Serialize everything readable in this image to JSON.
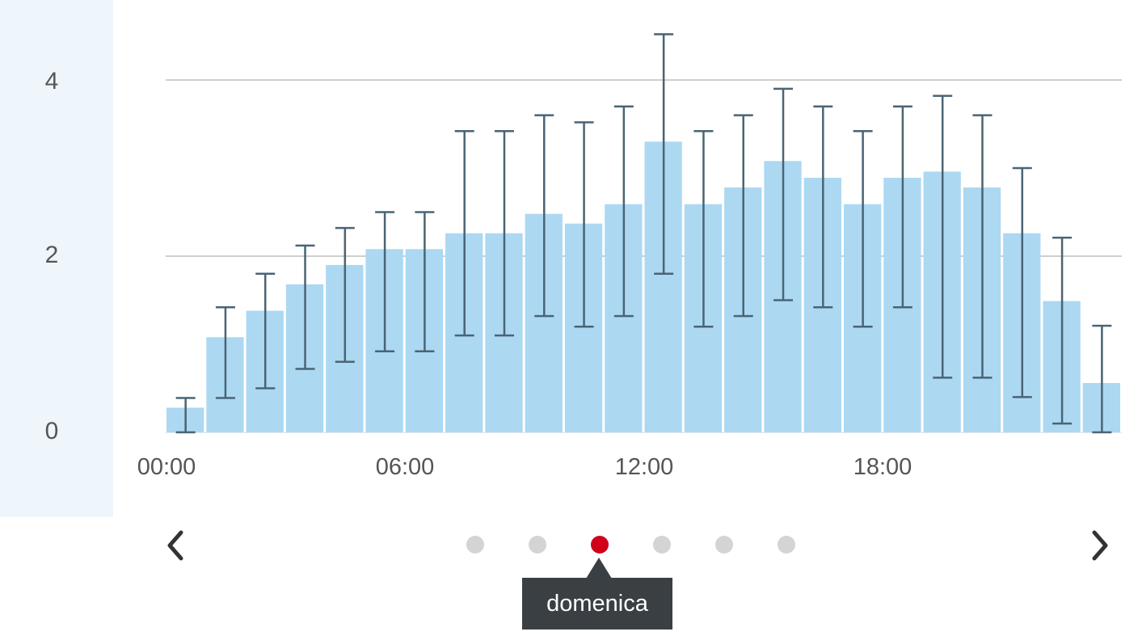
{
  "chart_data": {
    "type": "bar",
    "hours": [
      0,
      1,
      2,
      3,
      4,
      5,
      6,
      7,
      8,
      9,
      10,
      11,
      12,
      13,
      14,
      15,
      16,
      17,
      18,
      19,
      20,
      21,
      22,
      23
    ],
    "values": [
      0.28,
      1.08,
      1.38,
      1.68,
      1.9,
      2.08,
      2.08,
      2.26,
      2.26,
      2.48,
      2.37,
      2.59,
      3.3,
      2.59,
      2.78,
      3.08,
      2.89,
      2.59,
      2.89,
      2.96,
      2.78,
      2.26,
      1.49,
      0.56
    ],
    "error_low": [
      0.0,
      0.39,
      0.5,
      0.72,
      0.8,
      0.92,
      0.92,
      1.1,
      1.1,
      1.32,
      1.2,
      1.32,
      1.8,
      1.2,
      1.32,
      1.5,
      1.42,
      1.2,
      1.42,
      0.62,
      0.62,
      0.4,
      0.1,
      0.0
    ],
    "error_high": [
      0.39,
      1.42,
      1.8,
      2.12,
      2.32,
      2.5,
      2.5,
      3.42,
      3.42,
      3.6,
      3.52,
      3.7,
      4.52,
      3.42,
      3.6,
      3.9,
      3.7,
      3.42,
      3.7,
      3.82,
      3.6,
      3.0,
      2.21,
      1.21
    ],
    "ylim": [
      0,
      4.5
    ],
    "y_ticks": [
      0,
      2,
      4
    ],
    "x_tick_labels": [
      "00:00",
      "06:00",
      "12:00",
      "18:00"
    ],
    "grid": true,
    "colors": {
      "bar": "#acd8f2",
      "error": "#4a6474",
      "grid": "#cfcfcf"
    }
  },
  "carousel": {
    "dots": 6,
    "active_index": 2,
    "tooltip": "domenica",
    "colors": {
      "active": "#d0021b",
      "inactive": "#d4d4d4"
    }
  }
}
